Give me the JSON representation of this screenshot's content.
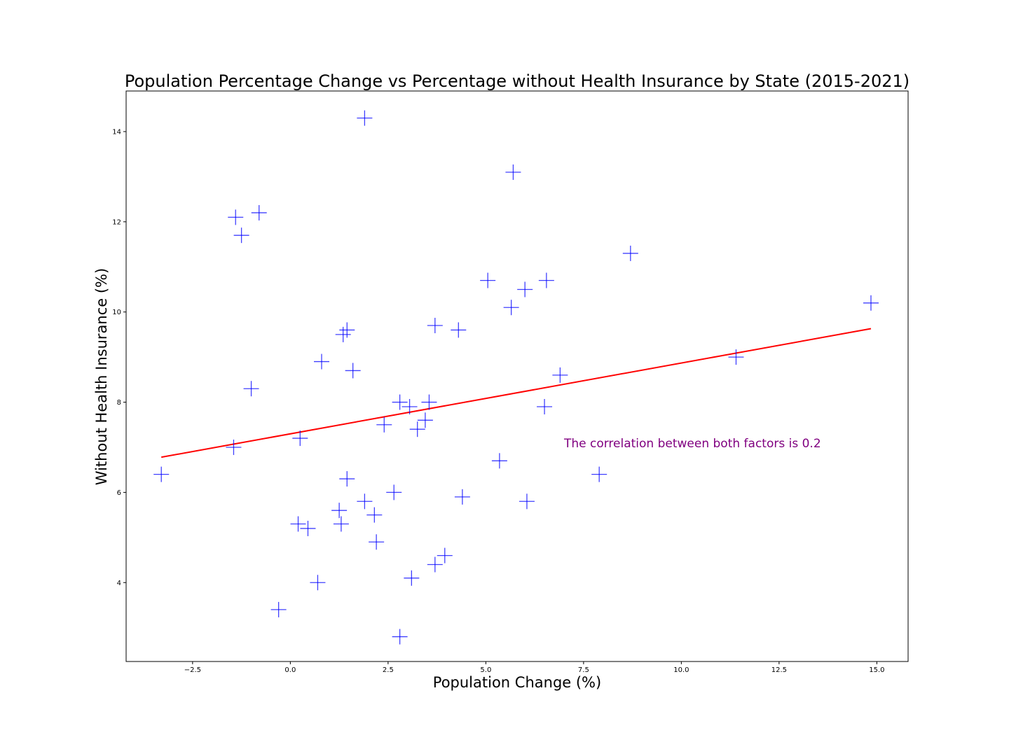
{
  "chart_data": {
    "type": "scatter",
    "title": "Population Percentage Change vs Percentage without Health Insurance by State (2015-2021)",
    "xlabel": "Population Change (%)",
    "ylabel": "Without Health Insurance (%)",
    "xlim": [
      -4.2,
      15.8
    ],
    "ylim": [
      2.25,
      14.9
    ],
    "xticks": [
      "−2.5",
      "0.0",
      "2.5",
      "5.0",
      "7.5",
      "10.0",
      "12.5",
      "15.0"
    ],
    "xtick_values": [
      -2.5,
      0.0,
      2.5,
      5.0,
      7.5,
      10.0,
      12.5,
      15.0
    ],
    "yticks": [
      "4",
      "6",
      "8",
      "10",
      "12",
      "14"
    ],
    "ytick_values": [
      4,
      6,
      8,
      10,
      12,
      14
    ],
    "grid": false,
    "marker": "+",
    "marker_color": "#0000ff",
    "series": [
      {
        "points": [
          [
            1.9,
            14.3
          ],
          [
            5.7,
            13.1
          ],
          [
            -1.4,
            12.1
          ],
          [
            -0.8,
            12.2
          ],
          [
            -1.25,
            11.7
          ],
          [
            8.7,
            11.3
          ],
          [
            5.05,
            10.7
          ],
          [
            6.55,
            10.7
          ],
          [
            6.0,
            10.5
          ],
          [
            5.65,
            10.1
          ],
          [
            14.85,
            10.2
          ],
          [
            3.7,
            9.7
          ],
          [
            4.3,
            9.6
          ],
          [
            1.35,
            9.5
          ],
          [
            1.45,
            9.6
          ],
          [
            0.8,
            8.9
          ],
          [
            1.6,
            8.7
          ],
          [
            11.4,
            9.0
          ],
          [
            6.9,
            8.6
          ],
          [
            -1.0,
            8.3
          ],
          [
            2.8,
            8.0
          ],
          [
            3.05,
            7.9
          ],
          [
            3.55,
            8.0
          ],
          [
            6.5,
            7.9
          ],
          [
            2.4,
            7.5
          ],
          [
            3.45,
            7.6
          ],
          [
            3.25,
            7.4
          ],
          [
            0.25,
            7.2
          ],
          [
            -1.45,
            7.0
          ],
          [
            5.35,
            6.7
          ],
          [
            -3.3,
            6.4
          ],
          [
            1.45,
            6.3
          ],
          [
            7.9,
            6.4
          ],
          [
            2.65,
            6.0
          ],
          [
            4.4,
            5.9
          ],
          [
            1.9,
            5.8
          ],
          [
            6.05,
            5.8
          ],
          [
            1.25,
            5.6
          ],
          [
            2.15,
            5.5
          ],
          [
            0.2,
            5.3
          ],
          [
            0.45,
            5.2
          ],
          [
            1.3,
            5.3
          ],
          [
            2.2,
            4.9
          ],
          [
            3.95,
            4.6
          ],
          [
            3.7,
            4.4
          ],
          [
            3.1,
            4.1
          ],
          [
            0.7,
            4.0
          ],
          [
            -0.3,
            3.4
          ],
          [
            2.8,
            2.8
          ]
        ]
      }
    ],
    "regression_line": {
      "x": [
        -3.3,
        14.85
      ],
      "y": [
        6.78,
        9.63
      ],
      "color": "#ff0000"
    },
    "annotation": {
      "text": "The correlation between both factors is 0.2",
      "x": 7.0,
      "y": 7.0,
      "color": "#800080"
    }
  }
}
